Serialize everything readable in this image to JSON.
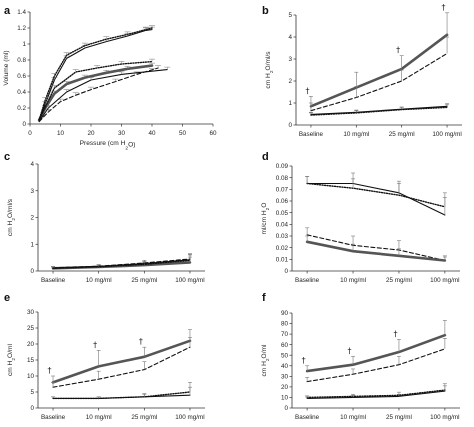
{
  "chart_data": [
    {
      "panel": "a",
      "type": "line",
      "xlabel": "Pressure (cm H2O)",
      "ylabel": "Volume (ml)",
      "xlim": [
        0,
        60
      ],
      "ylim": [
        0,
        1.4
      ],
      "xticks": [
        0,
        10,
        20,
        30,
        40,
        50,
        60
      ],
      "yticks": [
        0,
        0.2,
        0.4,
        0.6,
        0.8,
        1.0,
        1.2,
        1.4
      ],
      "ytick_labels": [
        "0",
        "0.2",
        "0.4",
        "0.6",
        "0.8",
        "1",
        "1.2",
        "1.4"
      ],
      "series": [
        {
          "style": "solid-thick",
          "points": [
            [
              3,
              0.05
            ],
            [
              5,
              0.2
            ],
            [
              8,
              0.38
            ],
            [
              12,
              0.5
            ],
            [
              18,
              0.58
            ],
            [
              25,
              0.64
            ],
            [
              32,
              0.69
            ],
            [
              40,
              0.73
            ]
          ]
        },
        {
          "style": "solid-thin",
          "points": [
            [
              3,
              0.05
            ],
            [
              5,
              0.25
            ],
            [
              8,
              0.55
            ],
            [
              12,
              0.82
            ],
            [
              18,
              0.95
            ],
            [
              25,
              1.03
            ],
            [
              32,
              1.1
            ],
            [
              38,
              1.17
            ],
            [
              40,
              1.18
            ]
          ]
        },
        {
          "style": "dotted",
          "points": [
            [
              3,
              0.05
            ],
            [
              5,
              0.3
            ],
            [
              8,
              0.6
            ],
            [
              12,
              0.86
            ],
            [
              18,
              0.98
            ],
            [
              25,
              1.06
            ],
            [
              32,
              1.12
            ],
            [
              38,
              1.18
            ],
            [
              40,
              1.2
            ]
          ]
        },
        {
          "style": "dashed",
          "points": [
            [
              3,
              0.03
            ],
            [
              6,
              0.15
            ],
            [
              10,
              0.28
            ],
            [
              15,
              0.36
            ],
            [
              20,
              0.43
            ],
            [
              28,
              0.53
            ],
            [
              35,
              0.62
            ],
            [
              42,
              0.7
            ]
          ]
        },
        {
          "style": "solid-thin",
          "points": [
            [
              3,
              0.03
            ],
            [
              6,
              0.2
            ],
            [
              12,
              0.4
            ],
            [
              20,
              0.55
            ],
            [
              30,
              0.62
            ],
            [
              40,
              0.66
            ],
            [
              45,
              0.68
            ]
          ]
        },
        {
          "style": "dotted",
          "points": [
            [
              3,
              0.05
            ],
            [
              8,
              0.45
            ],
            [
              15,
              0.65
            ],
            [
              22,
              0.7
            ],
            [
              30,
              0.75
            ],
            [
              40,
              0.78
            ]
          ]
        }
      ]
    },
    {
      "panel": "b",
      "type": "line",
      "ylabel": "cm H2O/ml/s",
      "categories": [
        "Baseline",
        "10 mg/ml",
        "25 mg/ml",
        "100 mg/ml"
      ],
      "ylim": [
        0,
        5
      ],
      "yticks": [
        0,
        1,
        2,
        3,
        4,
        5
      ],
      "series": [
        {
          "style": "solid-thick",
          "values": [
            0.85,
            1.7,
            2.55,
            4.1
          ],
          "errors": [
            0.45,
            0.7,
            0.6,
            1.0
          ]
        },
        {
          "style": "dashed",
          "values": [
            0.65,
            1.25,
            2.0,
            3.25
          ],
          "errors": [
            0.35,
            0.5,
            0.5,
            0.75
          ]
        },
        {
          "style": "dotted",
          "values": [
            0.45,
            0.55,
            0.7,
            0.8
          ],
          "errors": [
            0.1,
            0.1,
            0.1,
            0.12
          ]
        },
        {
          "style": "solid-thin",
          "values": [
            0.48,
            0.58,
            0.72,
            0.85
          ],
          "errors": [
            0.1,
            0.1,
            0.1,
            0.12
          ]
        }
      ],
      "daggers": [
        "Baseline",
        "25 mg/ml",
        "100 mg/ml"
      ]
    },
    {
      "panel": "c",
      "type": "line",
      "ylabel": "cm H2O/ml/s",
      "categories": [
        "Baseline",
        "10 mg/ml",
        "25 mg/ml",
        "100 mg/ml"
      ],
      "ylim": [
        0,
        4
      ],
      "yticks": [
        0,
        1,
        2,
        3,
        4
      ],
      "series": [
        {
          "style": "solid-thick",
          "values": [
            0.1,
            0.15,
            0.22,
            0.32
          ],
          "errors": [
            0.05,
            0.06,
            0.08,
            0.2
          ]
        },
        {
          "style": "dashed",
          "values": [
            0.12,
            0.18,
            0.3,
            0.45
          ],
          "errors": [
            0.05,
            0.06,
            0.1,
            0.2
          ]
        },
        {
          "style": "dotted",
          "values": [
            0.1,
            0.16,
            0.25,
            0.4
          ],
          "errors": [
            0.05,
            0.06,
            0.08,
            0.2
          ]
        },
        {
          "style": "solid-thin",
          "values": [
            0.11,
            0.17,
            0.28,
            0.42
          ],
          "errors": [
            0.05,
            0.06,
            0.08,
            0.2
          ]
        }
      ],
      "daggers": []
    },
    {
      "panel": "d",
      "type": "line",
      "ylabel": "ml/cm H2O",
      "categories": [
        "Baseline",
        "10 mg/ml",
        "25 mg/ml",
        "100 mg/ml"
      ],
      "ylim": [
        0,
        0.09
      ],
      "yticks": [
        0,
        0.01,
        0.02,
        0.03,
        0.04,
        0.05,
        0.06,
        0.07,
        0.08,
        0.09
      ],
      "ytick_labels": [
        "0",
        "0.01",
        "0.02",
        "0.03",
        "0.04",
        "0.05",
        "0.06",
        "0.07",
        "0.08",
        "0.09"
      ],
      "series": [
        {
          "style": "solid-thin",
          "values": [
            0.075,
            0.075,
            0.067,
            0.048
          ],
          "errors": [
            0.006,
            0.009,
            0.01,
            0.015
          ]
        },
        {
          "style": "dotted",
          "values": [
            0.075,
            0.071,
            0.065,
            0.055
          ],
          "errors": [
            0.006,
            0.008,
            0.01,
            0.012
          ]
        },
        {
          "style": "dashed",
          "values": [
            0.031,
            0.022,
            0.018,
            0.009
          ],
          "errors": [
            0.006,
            0.008,
            0.008,
            0.004
          ]
        },
        {
          "style": "solid-thick",
          "values": [
            0.025,
            0.017,
            0.013,
            0.009
          ],
          "errors": [
            0.005,
            0.006,
            0.006,
            0.003
          ]
        }
      ],
      "daggers": []
    },
    {
      "panel": "e",
      "type": "line",
      "ylabel": "cm H2O/ml",
      "categories": [
        "Baseline",
        "10 mg/ml",
        "25 mg/ml",
        "100 mg/ml"
      ],
      "ylim": [
        0,
        30
      ],
      "yticks": [
        0,
        5,
        10,
        15,
        20,
        25,
        30
      ],
      "series": [
        {
          "style": "solid-thick",
          "values": [
            8,
            13,
            16,
            21
          ],
          "errors": [
            2,
            5,
            3,
            3.5
          ]
        },
        {
          "style": "dashed",
          "values": [
            6.5,
            9,
            12,
            19
          ],
          "errors": [
            1.5,
            2.5,
            2.5,
            3
          ]
        },
        {
          "style": "dotted",
          "values": [
            3,
            3,
            3.5,
            5
          ],
          "errors": [
            0.5,
            0.5,
            1,
            3
          ]
        },
        {
          "style": "solid-thin",
          "values": [
            3,
            3,
            3.5,
            4
          ],
          "errors": [
            0.5,
            0.5,
            0.8,
            2.5
          ]
        }
      ],
      "daggers": [
        "Baseline",
        "10 mg/ml",
        "25 mg/ml"
      ]
    },
    {
      "panel": "f",
      "type": "line",
      "ylabel": "cm H2O/ml",
      "categories": [
        "Baseline",
        "10 mg/ml",
        "25 mg/ml",
        "100 mg/ml"
      ],
      "ylim": [
        0,
        90
      ],
      "yticks": [
        0,
        10,
        20,
        30,
        40,
        50,
        60,
        70,
        80,
        90
      ],
      "series": [
        {
          "style": "solid-thick",
          "values": [
            35,
            41,
            53,
            69
          ],
          "errors": [
            5,
            8,
            12,
            14
          ]
        },
        {
          "style": "dashed",
          "values": [
            25,
            32,
            41,
            56
          ],
          "errors": [
            4,
            5,
            8,
            10
          ]
        },
        {
          "style": "dotted",
          "values": [
            10,
            11,
            12,
            17
          ],
          "errors": [
            1.5,
            2,
            3,
            6
          ]
        },
        {
          "style": "solid-thin",
          "values": [
            9,
            10,
            11,
            16
          ],
          "errors": [
            1.5,
            2,
            2,
            5
          ]
        }
      ],
      "daggers": [
        "Baseline",
        "10 mg/ml",
        "25 mg/ml"
      ]
    }
  ]
}
